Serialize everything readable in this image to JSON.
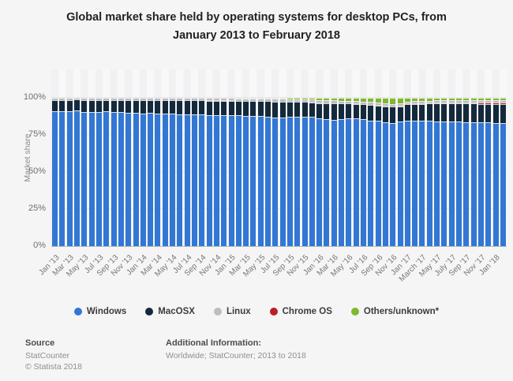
{
  "title": {
    "line1": "Global market share held by operating systems for desktop PCs, from",
    "line2": "January 2013 to February 2018"
  },
  "footer": {
    "source_label": "Source",
    "source_line1": "StatCounter",
    "source_line2": "© Statista 2018",
    "additional_label": "Additional Information:",
    "additional_text": "Worldwide; StatCounter; 2013 to 2018"
  },
  "chart_data": {
    "type": "bar",
    "stacked": true,
    "title": "Global market share held by operating systems for desktop PCs, from January 2013 to February 2018",
    "ylabel": "Market share",
    "ylim": [
      0,
      100
    ],
    "grid": true,
    "legend_position": "bottom",
    "yticks": [
      "0%",
      "25%",
      "50%",
      "75%",
      "100%"
    ],
    "categories": [
      "Jan '13",
      "Feb '13",
      "Mar '13",
      "Apr '13",
      "May '13",
      "Jun '13",
      "Jul '13",
      "Aug '13",
      "Sep '13",
      "Oct '13",
      "Nov '13",
      "Dec '13",
      "Jan '14",
      "Feb '14",
      "Mar '14",
      "Apr '14",
      "May '14",
      "Jun '14",
      "Jul '14",
      "Aug '14",
      "Sep '14",
      "Oct '14",
      "Nov '14",
      "Dec '14",
      "Jan '15",
      "Feb '15",
      "Mar '15",
      "Apr '15",
      "May '15",
      "Jun '15",
      "Jul '15",
      "Aug '15",
      "Sep '15",
      "Oct '15",
      "Nov '15",
      "Dec '15",
      "Jan '16",
      "Feb '16",
      "Mar '16",
      "Apr '16",
      "May '16",
      "Jun '16",
      "Jul '16",
      "Aug '16",
      "Sep '16",
      "Oct '16",
      "Nov '16",
      "Dec '16",
      "Jan '17",
      "Feb '17",
      "Mar '17",
      "Apr '17",
      "May '17",
      "Jun '17",
      "Jul '17",
      "Aug '17",
      "Sep '17",
      "Oct '17",
      "Nov '17",
      "Dec '17",
      "Jan '18",
      "Feb '18"
    ],
    "x_tick_labels": [
      "Jan '13",
      "Mar '13",
      "May '13",
      "Jul '13",
      "Sep '13",
      "Nov '13",
      "Jan '14",
      "Mar '14",
      "May '14",
      "Jul '14",
      "Sep '14",
      "Nov '14",
      "Jan '15",
      "Mar '15",
      "May '15",
      "Jul '15",
      "Sep '15",
      "Nov '15",
      "Jan '16",
      "Mar '16",
      "May '16",
      "Jul '16",
      "Sep '16",
      "Nov '16",
      "Jan '17",
      "March '17",
      "May '17",
      "July '17",
      "Sep '17",
      "Nov '17",
      "Jan '18"
    ],
    "x_tick_every": 2,
    "stack_order_bottom_to_top": [
      "Windows",
      "MacOSX",
      "Chrome OS",
      "Linux",
      "Others/unknown*"
    ],
    "series": [
      {
        "name": "Windows",
        "color": "#3277d4",
        "values": [
          90.9,
          90.9,
          90.9,
          91.1,
          90.4,
          90.4,
          90.4,
          90.6,
          90.2,
          90.0,
          89.9,
          89.6,
          89.2,
          89.4,
          89.3,
          89.1,
          88.9,
          88.7,
          88.7,
          88.6,
          88.5,
          88.2,
          88.1,
          88.0,
          88.2,
          87.9,
          87.6,
          87.5,
          87.4,
          87.0,
          86.6,
          86.3,
          86.9,
          87.2,
          87.1,
          86.8,
          85.9,
          85.4,
          85.1,
          85.4,
          85.9,
          86.2,
          85.3,
          84.6,
          84.2,
          83.2,
          82.6,
          83.6,
          84.1,
          84.2,
          84.1,
          84.2,
          84.0,
          84.0,
          83.9,
          83.6,
          83.5,
          83.4,
          83.3,
          83.4,
          82.7,
          82.6
        ]
      },
      {
        "name": "MacOSX",
        "color": "#14293c",
        "values": [
          7.5,
          7.5,
          7.5,
          7.4,
          8.0,
          8.0,
          7.9,
          7.7,
          8.1,
          8.2,
          8.3,
          8.6,
          8.9,
          8.8,
          8.8,
          9.0,
          9.1,
          9.2,
          9.2,
          9.3,
          9.4,
          9.6,
          9.7,
          9.8,
          9.6,
          9.8,
          10.0,
          10.1,
          10.1,
          10.4,
          10.6,
          10.8,
          10.2,
          9.9,
          9.9,
          10.0,
          10.4,
          10.7,
          10.8,
          10.4,
          9.9,
          9.5,
          10.0,
          10.3,
          10.5,
          10.9,
          11.1,
          10.4,
          11.2,
          11.3,
          11.6,
          11.7,
          11.9,
          11.9,
          12.0,
          12.2,
          12.3,
          12.4,
          12.4,
          12.3,
          12.8,
          12.9
        ]
      },
      {
        "name": "Linux",
        "color": "#bdbdbd",
        "values": [
          1.2,
          1.2,
          1.2,
          1.2,
          1.2,
          1.2,
          1.3,
          1.3,
          1.3,
          1.4,
          1.4,
          1.4,
          1.5,
          1.4,
          1.5,
          1.5,
          1.5,
          1.6,
          1.6,
          1.6,
          1.6,
          1.6,
          1.6,
          1.6,
          1.6,
          1.6,
          1.7,
          1.7,
          1.7,
          1.7,
          1.8,
          1.8,
          1.7,
          1.7,
          1.7,
          1.7,
          1.8,
          1.8,
          1.8,
          1.8,
          1.8,
          1.8,
          1.8,
          1.8,
          1.8,
          1.8,
          1.8,
          1.8,
          1.5,
          1.5,
          1.5,
          1.5,
          1.5,
          1.5,
          1.5,
          1.6,
          1.6,
          1.6,
          1.6,
          1.6,
          1.6,
          1.6
        ]
      },
      {
        "name": "Chrome OS",
        "color": "#b92025",
        "values": [
          0,
          0,
          0,
          0,
          0,
          0,
          0,
          0,
          0,
          0,
          0,
          0,
          0,
          0,
          0,
          0,
          0.1,
          0.1,
          0.1,
          0.1,
          0.1,
          0.1,
          0.1,
          0.1,
          0.1,
          0.1,
          0.1,
          0.1,
          0.1,
          0.1,
          0.1,
          0.1,
          0.1,
          0.1,
          0.1,
          0.2,
          0.2,
          0.2,
          0.2,
          0.2,
          0.2,
          0.2,
          0.2,
          0.2,
          0.2,
          0.2,
          0.2,
          0.2,
          0.5,
          0.5,
          0.5,
          0.5,
          0.6,
          0.6,
          0.7,
          0.7,
          0.7,
          0.8,
          0.8,
          0.8,
          0.9,
          0.9
        ]
      },
      {
        "name": "Others/unknown*",
        "color": "#7fb82e",
        "values": [
          0.4,
          0.4,
          0.4,
          0.3,
          0.4,
          0.4,
          0.4,
          0.4,
          0.4,
          0.4,
          0.4,
          0.4,
          0.4,
          0.4,
          0.4,
          0.4,
          0.4,
          0.4,
          0.4,
          0.4,
          0.4,
          0.5,
          0.5,
          0.5,
          0.5,
          0.6,
          0.6,
          0.6,
          0.7,
          0.8,
          0.9,
          1.0,
          1.1,
          1.1,
          1.2,
          1.3,
          1.7,
          1.9,
          2.1,
          2.2,
          2.2,
          2.3,
          2.7,
          3.1,
          3.3,
          3.9,
          4.3,
          4.0,
          2.7,
          2.5,
          2.3,
          2.1,
          2.0,
          2.0,
          1.9,
          1.9,
          1.9,
          1.8,
          1.9,
          1.9,
          2.0,
          2.0
        ]
      }
    ]
  }
}
